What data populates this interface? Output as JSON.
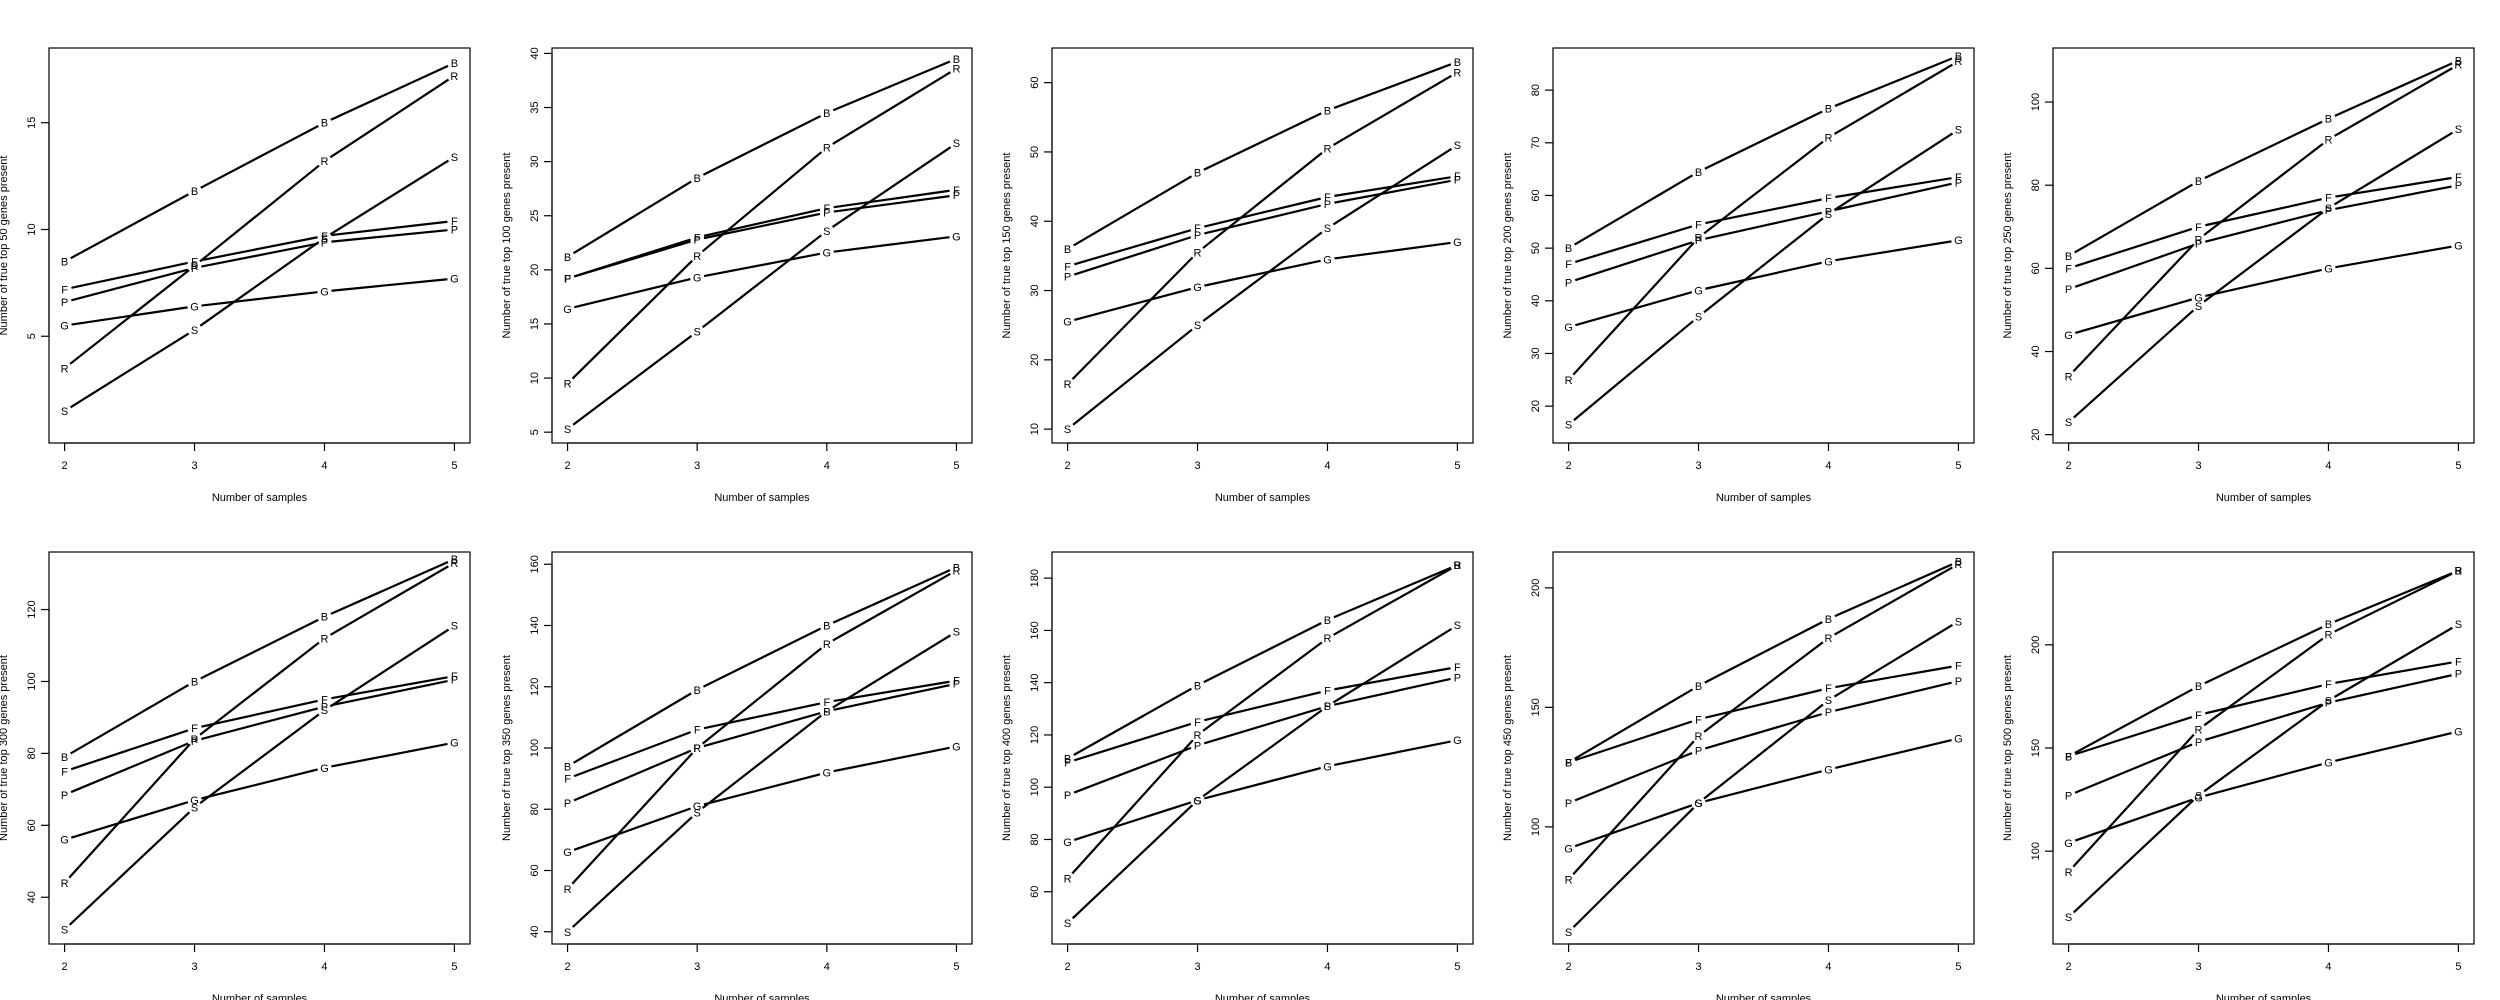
{
  "chart_data": [
    {
      "type": "line",
      "x": [
        2,
        3,
        4,
        5
      ],
      "xlabel": "Number of samples",
      "ylabel": "Number of true top 50 genes present",
      "ylim": [
        0,
        18.5
      ],
      "yticks": [
        5,
        10,
        15
      ],
      "grid": false,
      "legend": "none",
      "series": [
        {
          "name": "B",
          "values": [
            8.5,
            11.8,
            15.0,
            17.8
          ]
        },
        {
          "name": "F",
          "values": [
            7.2,
            8.5,
            9.7,
            10.4
          ]
        },
        {
          "name": "P",
          "values": [
            6.6,
            8.2,
            9.4,
            10.0
          ]
        },
        {
          "name": "G",
          "values": [
            5.5,
            6.4,
            7.1,
            7.7
          ]
        },
        {
          "name": "R",
          "values": [
            3.5,
            8.3,
            13.2,
            17.2
          ]
        },
        {
          "name": "S",
          "values": [
            1.5,
            5.3,
            9.6,
            13.4
          ]
        }
      ]
    },
    {
      "type": "line",
      "x": [
        2,
        3,
        4,
        5
      ],
      "xlabel": "Number of samples",
      "ylabel": "Number of true top 100 genes present",
      "ylim": [
        4,
        40.5
      ],
      "yticks": [
        5,
        10,
        15,
        20,
        25,
        30,
        35,
        40
      ],
      "grid": false,
      "legend": "none",
      "series": [
        {
          "name": "B",
          "values": [
            21.2,
            28.5,
            34.5,
            39.5
          ]
        },
        {
          "name": "F",
          "values": [
            19.2,
            23.0,
            25.7,
            27.4
          ]
        },
        {
          "name": "P",
          "values": [
            19.2,
            22.8,
            25.3,
            26.9
          ]
        },
        {
          "name": "G",
          "values": [
            16.4,
            19.3,
            21.6,
            23.1
          ]
        },
        {
          "name": "R",
          "values": [
            9.5,
            21.3,
            31.3,
            38.6
          ]
        },
        {
          "name": "S",
          "values": [
            5.3,
            14.3,
            23.6,
            31.7
          ]
        }
      ]
    },
    {
      "type": "line",
      "x": [
        2,
        3,
        4,
        5
      ],
      "xlabel": "Number of samples",
      "ylabel": "Number of true top 150 genes present",
      "ylim": [
        8,
        65
      ],
      "yticks": [
        10,
        20,
        30,
        40,
        50,
        60
      ],
      "grid": false,
      "legend": "none",
      "series": [
        {
          "name": "B",
          "values": [
            36.0,
            47.0,
            56.0,
            63.0
          ]
        },
        {
          "name": "F",
          "values": [
            33.5,
            39.0,
            43.5,
            46.5
          ]
        },
        {
          "name": "P",
          "values": [
            32.0,
            38.0,
            42.5,
            46.0
          ]
        },
        {
          "name": "G",
          "values": [
            25.5,
            30.5,
            34.5,
            37.0
          ]
        },
        {
          "name": "R",
          "values": [
            16.5,
            35.5,
            50.5,
            61.5
          ]
        },
        {
          "name": "S",
          "values": [
            10.0,
            25.0,
            39.0,
            51.0
          ]
        }
      ]
    },
    {
      "type": "line",
      "x": [
        2,
        3,
        4,
        5
      ],
      "xlabel": "Number of samples",
      "ylabel": "Number of true top 200 genes present",
      "ylim": [
        13,
        88
      ],
      "yticks": [
        20,
        30,
        40,
        50,
        60,
        70,
        80
      ],
      "grid": false,
      "legend": "none",
      "series": [
        {
          "name": "B",
          "values": [
            50.0,
            64.5,
            76.5,
            86.5
          ]
        },
        {
          "name": "F",
          "values": [
            47.0,
            54.5,
            59.5,
            63.5
          ]
        },
        {
          "name": "P",
          "values": [
            43.5,
            51.5,
            57.0,
            62.5
          ]
        },
        {
          "name": "G",
          "values": [
            35.0,
            42.0,
            47.5,
            51.5
          ]
        },
        {
          "name": "R",
          "values": [
            25.0,
            52.0,
            71.0,
            85.5
          ]
        },
        {
          "name": "S",
          "values": [
            16.5,
            37.0,
            56.5,
            72.5
          ]
        }
      ]
    },
    {
      "type": "line",
      "x": [
        2,
        3,
        4,
        5
      ],
      "xlabel": "Number of samples",
      "ylabel": "Number of true top 250 genes present",
      "ylim": [
        18,
        113
      ],
      "yticks": [
        20,
        40,
        60,
        80,
        100
      ],
      "grid": false,
      "legend": "none",
      "series": [
        {
          "name": "B",
          "values": [
            63.0,
            81.0,
            96.0,
            110.0
          ]
        },
        {
          "name": "F",
          "values": [
            60.0,
            70.0,
            77.0,
            82.0
          ]
        },
        {
          "name": "P",
          "values": [
            55.0,
            66.0,
            74.0,
            80.0
          ]
        },
        {
          "name": "G",
          "values": [
            44.0,
            53.0,
            60.0,
            65.5
          ]
        },
        {
          "name": "R",
          "values": [
            34.0,
            67.0,
            91.0,
            109.0
          ]
        },
        {
          "name": "S",
          "values": [
            23.0,
            51.0,
            74.5,
            93.5
          ]
        }
      ]
    },
    {
      "type": "line",
      "x": [
        2,
        3,
        4,
        5
      ],
      "xlabel": "Number of samples",
      "ylabel": "Number of true top 300 genes present",
      "ylim": [
        27,
        136
      ],
      "yticks": [
        40,
        60,
        80,
        100,
        120
      ],
      "grid": false,
      "legend": "none",
      "series": [
        {
          "name": "B",
          "values": [
            79.0,
            100.0,
            118.0,
            134.0
          ]
        },
        {
          "name": "F",
          "values": [
            75.0,
            87.0,
            95.0,
            101.5
          ]
        },
        {
          "name": "P",
          "values": [
            68.5,
            83.5,
            93.0,
            100.5
          ]
        },
        {
          "name": "G",
          "values": [
            56.0,
            67.0,
            76.0,
            83.0
          ]
        },
        {
          "name": "R",
          "values": [
            44.0,
            84.0,
            112.0,
            133.0
          ]
        },
        {
          "name": "S",
          "values": [
            31.0,
            65.0,
            92.0,
            115.5
          ]
        }
      ]
    },
    {
      "type": "line",
      "x": [
        2,
        3,
        4,
        5
      ],
      "xlabel": "Number of samples",
      "ylabel": "Number of true top 350 genes present",
      "ylim": [
        36,
        164
      ],
      "yticks": [
        40,
        60,
        80,
        100,
        120,
        140,
        160
      ],
      "grid": false,
      "legend": "none",
      "series": [
        {
          "name": "B",
          "values": [
            94.0,
            119.0,
            140.0,
            159.0
          ]
        },
        {
          "name": "F",
          "values": [
            90.0,
            106.0,
            115.0,
            122.0
          ]
        },
        {
          "name": "P",
          "values": [
            82.0,
            100.0,
            112.0,
            121.0
          ]
        },
        {
          "name": "G",
          "values": [
            66.0,
            81.0,
            92.0,
            100.5
          ]
        },
        {
          "name": "R",
          "values": [
            54.0,
            100.0,
            134.0,
            158.0
          ]
        },
        {
          "name": "S",
          "values": [
            40.0,
            79.0,
            112.0,
            138.0
          ]
        }
      ]
    },
    {
      "type": "line",
      "x": [
        2,
        3,
        4,
        5
      ],
      "xlabel": "Number of samples",
      "ylabel": "Number of true top 400 genes present",
      "ylim": [
        40,
        190
      ],
      "yticks": [
        60,
        80,
        100,
        120,
        140,
        160,
        180
      ],
      "grid": false,
      "legend": "none",
      "series": [
        {
          "name": "B",
          "values": [
            111.0,
            139.0,
            164.0,
            185.0
          ]
        },
        {
          "name": "F",
          "values": [
            109.5,
            125.0,
            137.0,
            146.0
          ]
        },
        {
          "name": "P",
          "values": [
            97.0,
            116.0,
            131.0,
            142.0
          ]
        },
        {
          "name": "G",
          "values": [
            79.0,
            95.0,
            108.0,
            118.0
          ]
        },
        {
          "name": "R",
          "values": [
            65.0,
            120.0,
            157.0,
            185.0
          ]
        },
        {
          "name": "S",
          "values": [
            48.0,
            95.0,
            131.0,
            162.0
          ]
        }
      ]
    },
    {
      "type": "line",
      "x": [
        2,
        3,
        4,
        5
      ],
      "xlabel": "Number of samples",
      "ylabel": "Number of true top 450 genes present",
      "ylim": [
        51,
        215
      ],
      "yticks": [
        100,
        150,
        200
      ],
      "grid": false,
      "legend": "none",
      "series": [
        {
          "name": "B",
          "values": [
            127.0,
            159.0,
            187.0,
            211.0
          ]
        },
        {
          "name": "F",
          "values": [
            127.0,
            145.0,
            158.0,
            167.5
          ]
        },
        {
          "name": "P",
          "values": [
            110.0,
            132.0,
            148.0,
            161.0
          ]
        },
        {
          "name": "G",
          "values": [
            91.0,
            110.0,
            124.0,
            137.0
          ]
        },
        {
          "name": "R",
          "values": [
            78.0,
            138.0,
            179.0,
            210.0
          ]
        },
        {
          "name": "S",
          "values": [
            56.0,
            110.0,
            153.0,
            186.0
          ]
        }
      ]
    },
    {
      "type": "line",
      "x": [
        2,
        3,
        4,
        5
      ],
      "xlabel": "Number of samples",
      "ylabel": "Number of true top 500 genes present",
      "ylim": [
        55,
        245
      ],
      "yticks": [
        100,
        150,
        200
      ],
      "grid": false,
      "legend": "none",
      "series": [
        {
          "name": "B",
          "values": [
            146.0,
            180.0,
            210.0,
            236.0
          ]
        },
        {
          "name": "F",
          "values": [
            146.0,
            166.0,
            181.0,
            192.0
          ]
        },
        {
          "name": "P",
          "values": [
            127.0,
            153.0,
            172.0,
            186.0
          ]
        },
        {
          "name": "G",
          "values": [
            104.0,
            126.0,
            143.0,
            158.0
          ]
        },
        {
          "name": "R",
          "values": [
            90.0,
            159.0,
            205.0,
            236.0
          ]
        },
        {
          "name": "S",
          "values": [
            68.0,
            127.0,
            173.0,
            210.0
          ]
        }
      ]
    }
  ]
}
